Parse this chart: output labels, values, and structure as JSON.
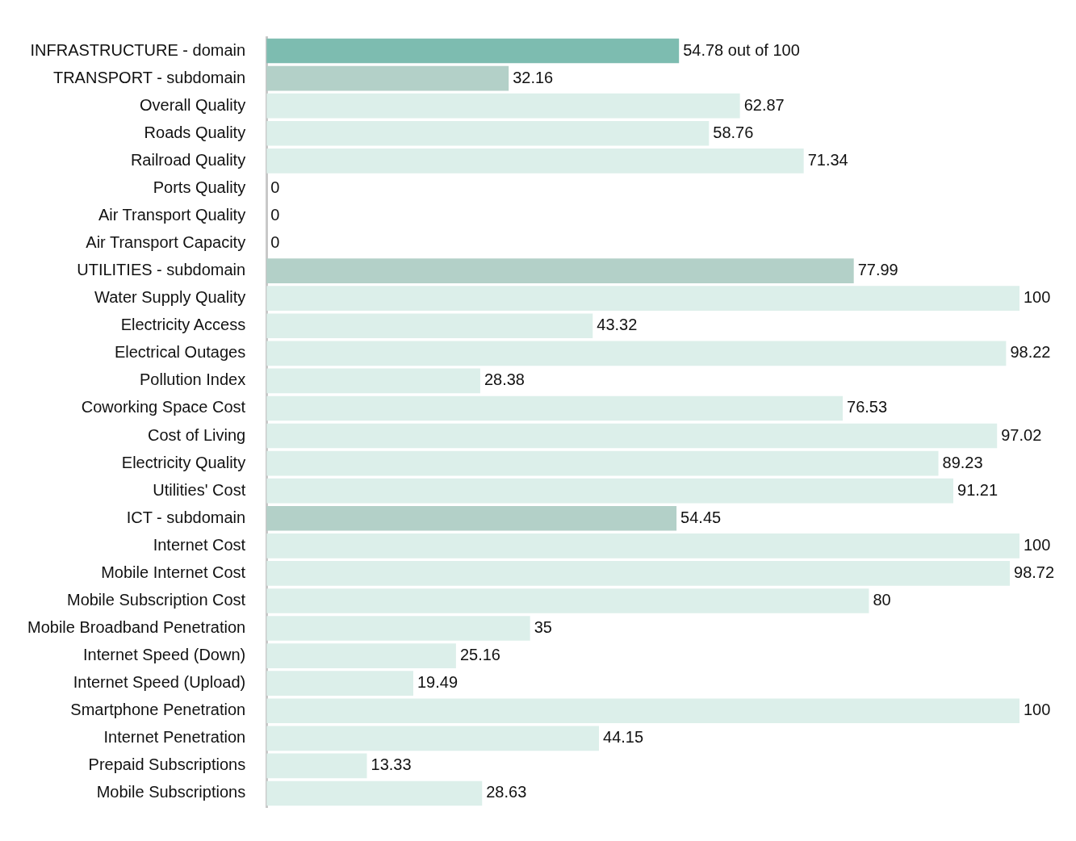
{
  "chart_data": {
    "type": "bar",
    "orientation": "horizontal",
    "legend": false,
    "tick_labels": "y",
    "categories": [
      "INFRASTRUCTURE - domain",
      "TRANSPORT - subdomain",
      "Overall Quality",
      "Roads Quality",
      "Railroad Quality",
      "Ports Quality",
      "Air Transport Quality",
      "Air Transport Capacity",
      "UTILITIES - subdomain",
      "Water Supply Quality",
      "Electricity Access",
      "Electrical Outages",
      "Pollution Index",
      "Coworking Space Cost",
      "Cost of Living",
      "Electricity Quality",
      "Utilities' Cost",
      "ICT - subdomain",
      "Internet Cost",
      "Mobile Internet Cost",
      "Mobile Subscription Cost",
      "Mobile Broadband Penetration",
      "Internet Speed (Down)",
      "Internet Speed (Upload)",
      "Smartphone Penetration",
      "Internet Penetration",
      "Prepaid Subscriptions",
      "Mobile Subscriptions"
    ],
    "values": [
      54.78,
      32.16,
      62.87,
      58.76,
      71.34,
      0,
      0,
      0,
      77.99,
      100,
      43.32,
      98.22,
      28.38,
      76.53,
      97.02,
      89.23,
      91.21,
      54.45,
      100,
      98.72,
      80,
      35,
      25.16,
      19.49,
      100,
      44.15,
      13.33,
      28.63
    ],
    "value_labels": [
      "54.78 out of 100",
      "32.16",
      "62.87",
      "58.76",
      "71.34",
      "0",
      "0",
      "0",
      "77.99",
      "100",
      "43.32",
      "98.22",
      "28.38",
      "76.53",
      "97.02",
      "89.23",
      "91.21",
      "54.45",
      "100",
      "98.72",
      "80",
      "35",
      "25.16",
      "19.49",
      "100",
      "44.15",
      "13.33",
      "28.63"
    ],
    "colors": [
      "#7dbcb0",
      "#b3d0c8",
      "#dcefea",
      "#dcefea",
      "#dcefea",
      "#dcefea",
      "#dcefea",
      "#dcefea",
      "#b3d0c8",
      "#dcefea",
      "#dcefea",
      "#dcefea",
      "#dcefea",
      "#dcefea",
      "#dcefea",
      "#dcefea",
      "#dcefea",
      "#b3d0c8",
      "#dcefea",
      "#dcefea",
      "#dcefea",
      "#dcefea",
      "#dcefea",
      "#dcefea",
      "#dcefea",
      "#dcefea",
      "#dcefea",
      "#dcefea"
    ]
  }
}
